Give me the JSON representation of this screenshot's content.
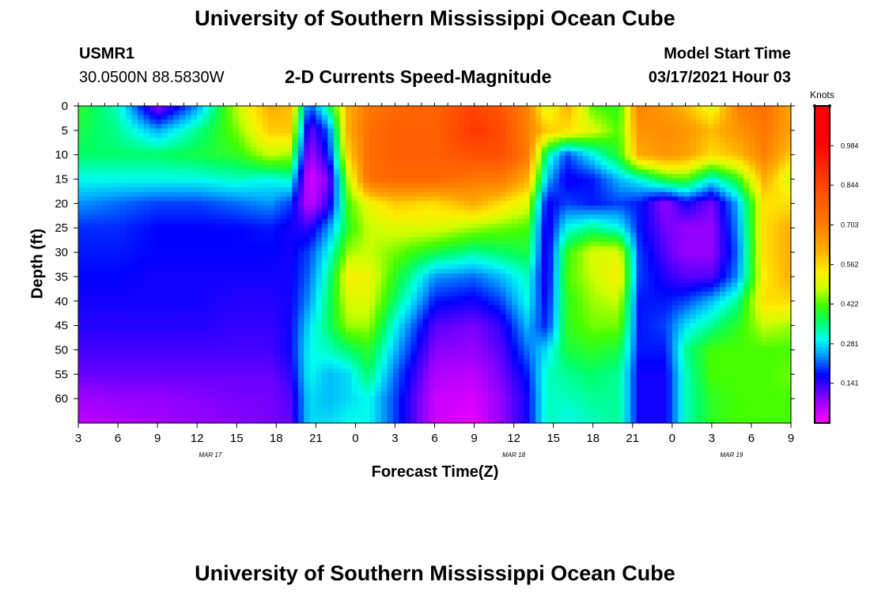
{
  "header": {
    "title": "University of Southern Mississippi Ocean Cube",
    "station_id": "USMR1",
    "coordinates": "30.0500N 88.5830W",
    "chart_subtitle": "2-D Currents Speed-Magnitude",
    "model_start_label": "Model Start Time",
    "model_start_value": "03/17/2021 Hour 03"
  },
  "footer": {
    "title": "University of Southern Mississippi Ocean Cube"
  },
  "colors": {
    "background": "#ffffff",
    "text": "#000000"
  },
  "chart_data": {
    "type": "heatmap",
    "title": "2-D Currents Speed-Magnitude",
    "xlabel": "Forecast Time(Z)",
    "ylabel": "Depth (ft)",
    "xlim": [
      0,
      54
    ],
    "ylim": [
      0,
      65
    ],
    "x_ticks": [
      {
        "pos": 0,
        "label": "3"
      },
      {
        "pos": 3,
        "label": "6"
      },
      {
        "pos": 6,
        "label": "9"
      },
      {
        "pos": 9,
        "label": "12"
      },
      {
        "pos": 12,
        "label": "15"
      },
      {
        "pos": 15,
        "label": "18"
      },
      {
        "pos": 18,
        "label": "21"
      },
      {
        "pos": 21,
        "label": "0"
      },
      {
        "pos": 24,
        "label": "3"
      },
      {
        "pos": 27,
        "label": "6"
      },
      {
        "pos": 30,
        "label": "9"
      },
      {
        "pos": 33,
        "label": "12"
      },
      {
        "pos": 36,
        "label": "15"
      },
      {
        "pos": 39,
        "label": "18"
      },
      {
        "pos": 42,
        "label": "21"
      },
      {
        "pos": 45,
        "label": "0"
      },
      {
        "pos": 48,
        "label": "3"
      },
      {
        "pos": 51,
        "label": "6"
      },
      {
        "pos": 54,
        "label": "9"
      }
    ],
    "date_labels": [
      {
        "pos": 10,
        "label": "MAR 17"
      },
      {
        "pos": 33,
        "label": "MAR 18"
      },
      {
        "pos": 49.5,
        "label": "MAR 19"
      }
    ],
    "y_ticks": [
      0,
      5,
      10,
      15,
      20,
      25,
      30,
      35,
      40,
      45,
      50,
      55,
      60
    ],
    "colorbar": {
      "units": "Knots",
      "min": 0.0,
      "max": 1.125,
      "tick_labels": [
        "0.141",
        "0.281",
        "0.422",
        "0.562",
        "0.703",
        "0.844",
        "0.984"
      ],
      "tick_values": [
        0.141,
        0.281,
        0.422,
        0.562,
        0.703,
        0.844,
        0.984
      ],
      "colormap": [
        {
          "v": 0.0,
          "color": "#ff00ff"
        },
        {
          "v": 0.09,
          "color": "#8800ff"
        },
        {
          "v": 0.17,
          "color": "#0000ff"
        },
        {
          "v": 0.25,
          "color": "#00aaff"
        },
        {
          "v": 0.3,
          "color": "#00ffee"
        },
        {
          "v": 0.36,
          "color": "#00ff66"
        },
        {
          "v": 0.42,
          "color": "#44ff00"
        },
        {
          "v": 0.48,
          "color": "#ccff00"
        },
        {
          "v": 0.54,
          "color": "#ffee00"
        },
        {
          "v": 0.62,
          "color": "#ffaa00"
        },
        {
          "v": 0.72,
          "color": "#ff7700"
        },
        {
          "v": 0.85,
          "color": "#ff4400"
        },
        {
          "v": 1.0,
          "color": "#ff0000"
        },
        {
          "v": 1.125,
          "color": "#ff0000"
        }
      ]
    },
    "depths": [
      0,
      5,
      10,
      15,
      20,
      25,
      30,
      35,
      40,
      45,
      50,
      55,
      60,
      65
    ],
    "times": [
      0,
      3,
      6,
      9,
      12,
      14.5,
      16,
      17.5,
      19,
      20.5,
      22,
      24,
      27,
      30,
      32,
      34,
      35.5,
      37,
      39,
      41,
      42.5,
      44.5,
      46,
      48,
      50,
      52,
      54
    ],
    "values": [
      [
        0.4,
        0.32,
        0.08,
        0.24,
        0.48,
        0.62,
        0.6,
        0.2,
        0.36,
        0.62,
        0.72,
        0.76,
        0.77,
        0.85,
        0.8,
        0.7,
        0.48,
        0.62,
        0.42,
        0.4,
        0.7,
        0.65,
        0.6,
        0.5,
        0.7,
        0.74,
        0.62
      ],
      [
        0.38,
        0.34,
        0.25,
        0.34,
        0.44,
        0.58,
        0.58,
        0.1,
        0.22,
        0.62,
        0.74,
        0.78,
        0.78,
        0.88,
        0.84,
        0.7,
        0.58,
        0.56,
        0.5,
        0.42,
        0.66,
        0.68,
        0.66,
        0.6,
        0.66,
        0.72,
        0.64
      ],
      [
        0.36,
        0.36,
        0.36,
        0.38,
        0.4,
        0.48,
        0.46,
        0.06,
        0.18,
        0.58,
        0.74,
        0.78,
        0.78,
        0.82,
        0.82,
        0.72,
        0.34,
        0.2,
        0.3,
        0.4,
        0.62,
        0.66,
        0.64,
        0.56,
        0.6,
        0.7,
        0.58
      ],
      [
        0.3,
        0.3,
        0.3,
        0.3,
        0.32,
        0.3,
        0.32,
        0.02,
        0.1,
        0.48,
        0.74,
        0.76,
        0.76,
        0.72,
        0.72,
        0.62,
        0.26,
        0.16,
        0.18,
        0.26,
        0.3,
        0.4,
        0.42,
        0.3,
        0.4,
        0.62,
        0.48
      ],
      [
        0.24,
        0.22,
        0.2,
        0.2,
        0.22,
        0.24,
        0.2,
        0.04,
        0.14,
        0.42,
        0.52,
        0.58,
        0.56,
        0.62,
        0.56,
        0.5,
        0.16,
        0.2,
        0.18,
        0.2,
        0.18,
        0.08,
        0.16,
        0.1,
        0.26,
        0.55,
        0.56
      ],
      [
        0.19,
        0.19,
        0.17,
        0.17,
        0.17,
        0.18,
        0.16,
        0.14,
        0.24,
        0.4,
        0.48,
        0.5,
        0.5,
        0.46,
        0.44,
        0.42,
        0.14,
        0.3,
        0.34,
        0.3,
        0.18,
        0.1,
        0.08,
        0.08,
        0.24,
        0.56,
        0.62
      ],
      [
        0.18,
        0.18,
        0.17,
        0.17,
        0.17,
        0.17,
        0.16,
        0.2,
        0.3,
        0.46,
        0.48,
        0.44,
        0.38,
        0.34,
        0.36,
        0.38,
        0.14,
        0.4,
        0.5,
        0.5,
        0.2,
        0.12,
        0.08,
        0.08,
        0.22,
        0.56,
        0.62
      ],
      [
        0.17,
        0.17,
        0.16,
        0.16,
        0.16,
        0.16,
        0.16,
        0.22,
        0.34,
        0.54,
        0.52,
        0.4,
        0.24,
        0.22,
        0.26,
        0.32,
        0.14,
        0.42,
        0.48,
        0.54,
        0.2,
        0.15,
        0.12,
        0.12,
        0.24,
        0.54,
        0.62
      ],
      [
        0.16,
        0.16,
        0.16,
        0.16,
        0.15,
        0.15,
        0.16,
        0.24,
        0.36,
        0.5,
        0.5,
        0.36,
        0.18,
        0.16,
        0.2,
        0.3,
        0.16,
        0.4,
        0.46,
        0.48,
        0.18,
        0.18,
        0.2,
        0.26,
        0.34,
        0.56,
        0.56
      ],
      [
        0.15,
        0.15,
        0.15,
        0.15,
        0.14,
        0.14,
        0.16,
        0.28,
        0.36,
        0.46,
        0.46,
        0.3,
        0.12,
        0.1,
        0.14,
        0.26,
        0.18,
        0.4,
        0.44,
        0.44,
        0.18,
        0.2,
        0.28,
        0.34,
        0.4,
        0.48,
        0.46
      ],
      [
        0.13,
        0.13,
        0.13,
        0.13,
        0.13,
        0.13,
        0.16,
        0.3,
        0.32,
        0.36,
        0.4,
        0.26,
        0.09,
        0.08,
        0.12,
        0.22,
        0.28,
        0.38,
        0.4,
        0.38,
        0.18,
        0.18,
        0.34,
        0.42,
        0.42,
        0.42,
        0.42
      ],
      [
        0.11,
        0.11,
        0.11,
        0.11,
        0.11,
        0.11,
        0.14,
        0.3,
        0.26,
        0.28,
        0.36,
        0.22,
        0.06,
        0.05,
        0.1,
        0.18,
        0.32,
        0.34,
        0.36,
        0.34,
        0.16,
        0.16,
        0.32,
        0.42,
        0.42,
        0.42,
        0.44
      ],
      [
        0.07,
        0.08,
        0.08,
        0.09,
        0.1,
        0.1,
        0.12,
        0.28,
        0.26,
        0.28,
        0.3,
        0.2,
        0.04,
        0.03,
        0.08,
        0.16,
        0.32,
        0.32,
        0.34,
        0.34,
        0.16,
        0.16,
        0.32,
        0.4,
        0.42,
        0.42,
        0.42
      ],
      [
        0.05,
        0.06,
        0.07,
        0.08,
        0.09,
        0.1,
        0.11,
        0.28,
        0.28,
        0.3,
        0.3,
        0.2,
        0.04,
        0.02,
        0.08,
        0.16,
        0.32,
        0.3,
        0.32,
        0.34,
        0.16,
        0.16,
        0.32,
        0.4,
        0.42,
        0.42,
        0.42
      ]
    ]
  }
}
